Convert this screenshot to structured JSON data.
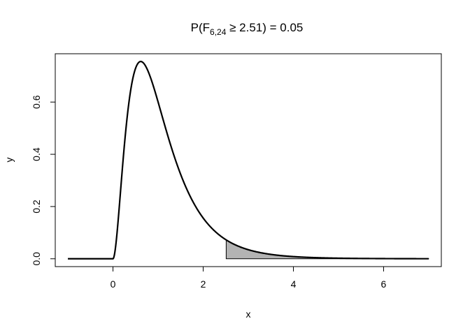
{
  "chart_data": {
    "type": "line",
    "title": {
      "prefix": "P(F",
      "subscript": "6,24",
      "suffix": " ≥ 2.51) = 0.05"
    },
    "xlabel": "x",
    "ylabel": "y",
    "xlim": [
      -1.28,
      7.28
    ],
    "ylim": [
      -0.03,
      0.785
    ],
    "x_ticks": [
      0,
      2,
      4,
      6
    ],
    "x_tick_labels": [
      "0",
      "2",
      "4",
      "6"
    ],
    "y_ticks": [
      0.0,
      0.2,
      0.4,
      0.6
    ],
    "y_tick_labels": [
      "0.0",
      "0.2",
      "0.4",
      "0.6"
    ],
    "grid": false,
    "legend": "none",
    "distribution": {
      "name": "F",
      "df1": 6,
      "df2": 24
    },
    "x_range": [
      -1,
      7
    ],
    "shaded_region": {
      "from": 2.51,
      "to": 7,
      "probability": 0.05
    },
    "series": [
      {
        "x": [
          -1.0,
          0.0,
          0.1,
          0.2,
          0.3,
          0.4,
          0.5,
          0.6,
          0.7,
          0.8,
          1.0,
          1.2,
          1.5,
          2.0,
          2.51,
          3.0,
          4.0,
          5.0,
          6.0,
          7.0
        ],
        "y": [
          0.0,
          0.0,
          0.2,
          0.46,
          0.64,
          0.73,
          0.75,
          0.75,
          0.73,
          0.69,
          0.61,
          0.52,
          0.39,
          0.21,
          0.074,
          0.036,
          0.01,
          0.003,
          0.001,
          0.0
        ]
      }
    ],
    "colors": {
      "curve": "#000000",
      "shade": "#b3b3b3"
    }
  }
}
